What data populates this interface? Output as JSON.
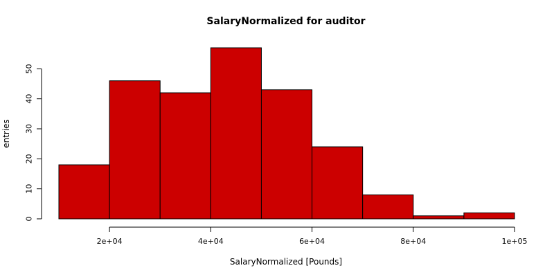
{
  "chart_data": {
    "type": "bar",
    "title": "SalaryNormalized for auditor",
    "xlabel": "SalaryNormalized [Pounds]",
    "ylabel": "entries",
    "bins": [
      {
        "start": 10000,
        "end": 20000,
        "count": 18
      },
      {
        "start": 20000,
        "end": 30000,
        "count": 46
      },
      {
        "start": 30000,
        "end": 40000,
        "count": 42
      },
      {
        "start": 40000,
        "end": 50000,
        "count": 57
      },
      {
        "start": 50000,
        "end": 60000,
        "count": 43
      },
      {
        "start": 60000,
        "end": 70000,
        "count": 24
      },
      {
        "start": 70000,
        "end": 80000,
        "count": 8
      },
      {
        "start": 80000,
        "end": 90000,
        "count": 1
      },
      {
        "start": 90000,
        "end": 100000,
        "count": 2
      }
    ],
    "xticks": [
      {
        "value": 20000,
        "label": "2e+04"
      },
      {
        "value": 40000,
        "label": "4e+04"
      },
      {
        "value": 60000,
        "label": "6e+04"
      },
      {
        "value": 80000,
        "label": "8e+04"
      },
      {
        "value": 100000,
        "label": "1e+05"
      }
    ],
    "yticks": [
      {
        "value": 0,
        "label": "0"
      },
      {
        "value": 10,
        "label": "10"
      },
      {
        "value": 20,
        "label": "20"
      },
      {
        "value": 30,
        "label": "30"
      },
      {
        "value": 40,
        "label": "40"
      },
      {
        "value": 50,
        "label": "50"
      }
    ],
    "xlim": [
      10000,
      100000
    ],
    "ylim": [
      0,
      57
    ],
    "bar_color": "#cc0000",
    "edge_color": "#000000",
    "grid": false,
    "legend": "none"
  }
}
